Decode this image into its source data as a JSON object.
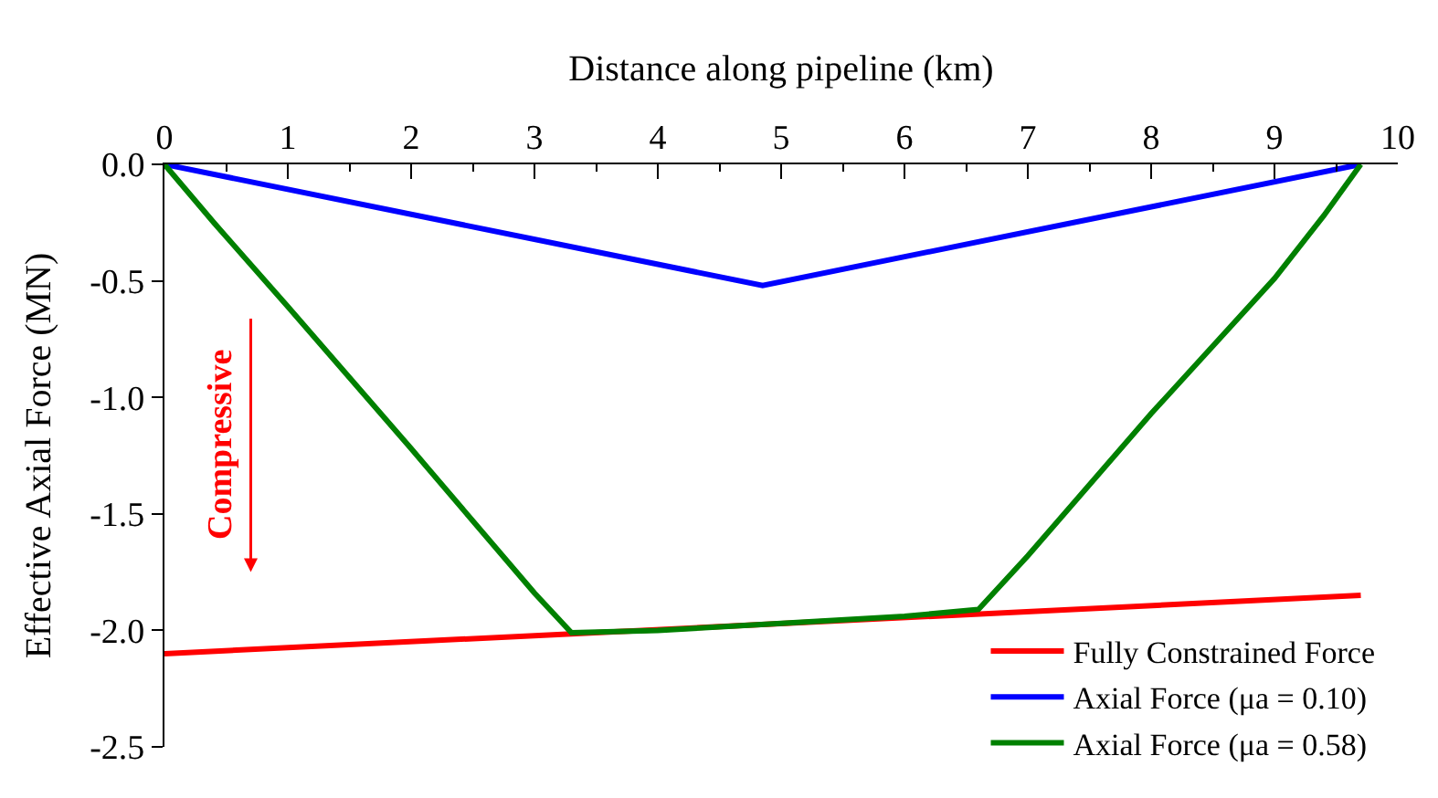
{
  "chart_data": {
    "type": "line",
    "xlabel": "Distance along pipeline (km)",
    "ylabel": "Effective Axial Force (MN)",
    "xlim": [
      0,
      10
    ],
    "xticks": [
      0,
      1,
      2,
      3,
      4,
      5,
      6,
      7,
      8,
      9,
      10
    ],
    "ylim": [
      -2.5,
      0
    ],
    "yticks": [
      {
        "value": 0,
        "label": "0.0"
      },
      {
        "value": -0.5,
        "label": "-0.5"
      },
      {
        "value": -1,
        "label": "-1.0"
      },
      {
        "value": -1.5,
        "label": "-1.5"
      },
      {
        "value": -2,
        "label": "-2.0"
      },
      {
        "value": -2.5,
        "label": "-2.5"
      }
    ],
    "legend": "bottom right",
    "marker": "none",
    "line_style": "solid",
    "annotations": [
      "Compressive"
    ],
    "series": [
      {
        "name": "Fully Constrained Force",
        "color": "#ff0000",
        "x": [
          0,
          9.7
        ],
        "values": [
          -2.1,
          -1.85
        ]
      },
      {
        "name": "Axial Force (μa = 0.10)",
        "color": "#0000ff",
        "x": [
          0,
          4.85,
          9.7
        ],
        "values": [
          0,
          -0.52,
          0
        ]
      },
      {
        "name": "Axial Force (μa = 0.58)",
        "color": "#008000",
        "x": [
          0,
          0.4,
          1,
          2,
          3,
          3.3,
          4,
          5,
          6,
          6.6,
          7,
          8,
          9,
          9.4,
          9.7
        ],
        "values": [
          0,
          -0.25,
          -0.61,
          -1.22,
          -1.84,
          -2.01,
          -2.0,
          -1.97,
          -1.94,
          -1.91,
          -1.68,
          -1.07,
          -0.49,
          -0.22,
          0
        ]
      }
    ]
  }
}
